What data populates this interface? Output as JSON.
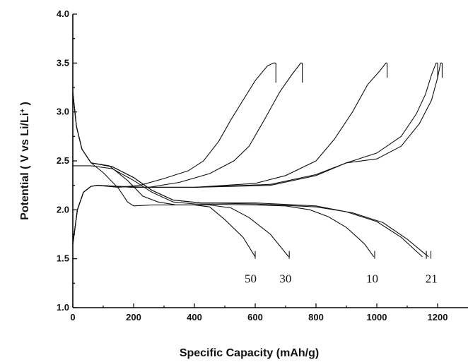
{
  "chart_data": {
    "type": "line",
    "title": "",
    "xlabel": "Specific Capacity (mAh/g)",
    "ylabel_parts": {
      "pre": "Potential ( V vs Li/Li",
      "sup": "+",
      "post": " )"
    },
    "xlim": [
      0,
      1300
    ],
    "ylim": [
      1.0,
      4.0
    ],
    "x_ticks": [
      0,
      200,
      400,
      600,
      800,
      1000,
      1200
    ],
    "y_ticks": [
      1.0,
      1.5,
      2.0,
      2.5,
      3.0,
      3.5,
      4.0
    ],
    "grid": false,
    "legend": "none",
    "curve_labels": [
      {
        "text": "50",
        "x": 565,
        "y": 1.3
      },
      {
        "text": "30",
        "x": 680,
        "y": 1.3
      },
      {
        "text": "10",
        "x": 965,
        "y": 1.3
      },
      {
        "text": "21",
        "x": 1160,
        "y": 1.3
      }
    ],
    "series": [
      {
        "values": [
          [
            0,
            3.2
          ],
          [
            12,
            2.85
          ],
          [
            30,
            2.62
          ],
          [
            60,
            2.48
          ],
          [
            100,
            2.38
          ],
          [
            150,
            2.22
          ],
          [
            180,
            2.08
          ],
          [
            200,
            2.04
          ],
          [
            260,
            2.05
          ],
          [
            400,
            2.05
          ],
          [
            450,
            2.03
          ],
          [
            500,
            1.9
          ],
          [
            560,
            1.72
          ],
          [
            600,
            1.52
          ]
        ]
      },
      {
        "values": [
          [
            0,
            1.65
          ],
          [
            15,
            2.0
          ],
          [
            35,
            2.18
          ],
          [
            60,
            2.24
          ],
          [
            80,
            2.25
          ],
          [
            150,
            2.23
          ],
          [
            220,
            2.25
          ],
          [
            300,
            2.32
          ],
          [
            380,
            2.4
          ],
          [
            430,
            2.5
          ],
          [
            480,
            2.7
          ],
          [
            520,
            2.92
          ],
          [
            560,
            3.12
          ],
          [
            600,
            3.32
          ],
          [
            640,
            3.47
          ],
          [
            660,
            3.5
          ],
          [
            668,
            3.5
          ]
        ]
      },
      {
        "values": [
          [
            0,
            3.2
          ],
          [
            12,
            2.85
          ],
          [
            30,
            2.62
          ],
          [
            60,
            2.48
          ],
          [
            120,
            2.45
          ],
          [
            180,
            2.3
          ],
          [
            230,
            2.14
          ],
          [
            280,
            2.08
          ],
          [
            340,
            2.05
          ],
          [
            450,
            2.05
          ],
          [
            520,
            2.02
          ],
          [
            580,
            1.92
          ],
          [
            650,
            1.75
          ],
          [
            710,
            1.52
          ]
        ]
      },
      {
        "values": [
          [
            0,
            1.65
          ],
          [
            15,
            2.0
          ],
          [
            35,
            2.18
          ],
          [
            60,
            2.24
          ],
          [
            80,
            2.25
          ],
          [
            150,
            2.24
          ],
          [
            250,
            2.23
          ],
          [
            350,
            2.28
          ],
          [
            450,
            2.37
          ],
          [
            530,
            2.5
          ],
          [
            580,
            2.65
          ],
          [
            630,
            2.92
          ],
          [
            680,
            3.2
          ],
          [
            720,
            3.38
          ],
          [
            750,
            3.5
          ],
          [
            755,
            3.5
          ]
        ]
      },
      {
        "values": [
          [
            0,
            2.45
          ],
          [
            60,
            2.45
          ],
          [
            130,
            2.42
          ],
          [
            200,
            2.3
          ],
          [
            260,
            2.18
          ],
          [
            330,
            2.08
          ],
          [
            400,
            2.06
          ],
          [
            600,
            2.05
          ],
          [
            700,
            2.04
          ],
          [
            780,
            2.0
          ],
          [
            840,
            1.93
          ],
          [
            900,
            1.82
          ],
          [
            960,
            1.65
          ],
          [
            990,
            1.52
          ]
        ]
      },
      {
        "values": [
          [
            0,
            1.65
          ],
          [
            15,
            2.0
          ],
          [
            35,
            2.18
          ],
          [
            60,
            2.24
          ],
          [
            80,
            2.25
          ],
          [
            200,
            2.23
          ],
          [
            400,
            2.23
          ],
          [
            600,
            2.27
          ],
          [
            700,
            2.35
          ],
          [
            800,
            2.5
          ],
          [
            860,
            2.72
          ],
          [
            920,
            3.0
          ],
          [
            970,
            3.28
          ],
          [
            1010,
            3.42
          ],
          [
            1030,
            3.5
          ],
          [
            1034,
            3.5
          ]
        ]
      },
      {
        "values": [
          [
            0,
            3.2
          ],
          [
            12,
            2.85
          ],
          [
            30,
            2.62
          ],
          [
            60,
            2.48
          ],
          [
            130,
            2.44
          ],
          [
            200,
            2.33
          ],
          [
            260,
            2.2
          ],
          [
            330,
            2.1
          ],
          [
            420,
            2.07
          ],
          [
            600,
            2.07
          ],
          [
            800,
            2.04
          ],
          [
            900,
            1.98
          ],
          [
            1000,
            1.88
          ],
          [
            1080,
            1.72
          ],
          [
            1150,
            1.52
          ]
        ]
      },
      {
        "values": [
          [
            0,
            1.65
          ],
          [
            15,
            2.0
          ],
          [
            35,
            2.18
          ],
          [
            60,
            2.24
          ],
          [
            80,
            2.25
          ],
          [
            200,
            2.23
          ],
          [
            400,
            2.23
          ],
          [
            650,
            2.25
          ],
          [
            800,
            2.35
          ],
          [
            900,
            2.48
          ],
          [
            1000,
            2.58
          ],
          [
            1080,
            2.75
          ],
          [
            1130,
            2.98
          ],
          [
            1160,
            3.18
          ],
          [
            1180,
            3.38
          ],
          [
            1195,
            3.5
          ],
          [
            1200,
            3.5
          ]
        ]
      },
      {
        "values": [
          [
            0,
            3.2
          ],
          [
            12,
            2.85
          ],
          [
            30,
            2.62
          ],
          [
            60,
            2.48
          ],
          [
            130,
            2.44
          ],
          [
            200,
            2.33
          ],
          [
            260,
            2.2
          ],
          [
            330,
            2.1
          ],
          [
            420,
            2.07
          ],
          [
            600,
            2.06
          ],
          [
            800,
            2.03
          ],
          [
            920,
            1.97
          ],
          [
            1020,
            1.87
          ],
          [
            1100,
            1.7
          ],
          [
            1170,
            1.52
          ]
        ]
      },
      {
        "values": [
          [
            0,
            1.65
          ],
          [
            15,
            2.0
          ],
          [
            35,
            2.18
          ],
          [
            60,
            2.24
          ],
          [
            80,
            2.25
          ],
          [
            200,
            2.23
          ],
          [
            400,
            2.23
          ],
          [
            650,
            2.26
          ],
          [
            800,
            2.36
          ],
          [
            900,
            2.48
          ],
          [
            1000,
            2.52
          ],
          [
            1080,
            2.65
          ],
          [
            1140,
            2.88
          ],
          [
            1180,
            3.12
          ],
          [
            1200,
            3.35
          ],
          [
            1210,
            3.5
          ],
          [
            1215,
            3.5
          ]
        ]
      }
    ],
    "end_ticks": [
      {
        "x": 600,
        "y1": 1.5,
        "y2": 1.58
      },
      {
        "x": 668,
        "y1": 3.5,
        "y2": 3.3
      },
      {
        "x": 712,
        "y1": 1.5,
        "y2": 1.58
      },
      {
        "x": 755,
        "y1": 3.5,
        "y2": 3.3
      },
      {
        "x": 993,
        "y1": 1.5,
        "y2": 1.58
      },
      {
        "x": 1034,
        "y1": 3.5,
        "y2": 3.35
      },
      {
        "x": 1163,
        "y1": 1.5,
        "y2": 1.58
      },
      {
        "x": 1178,
        "y1": 1.5,
        "y2": 1.58
      },
      {
        "x": 1200,
        "y1": 3.5,
        "y2": 3.35
      },
      {
        "x": 1215,
        "y1": 3.5,
        "y2": 3.35
      }
    ]
  }
}
